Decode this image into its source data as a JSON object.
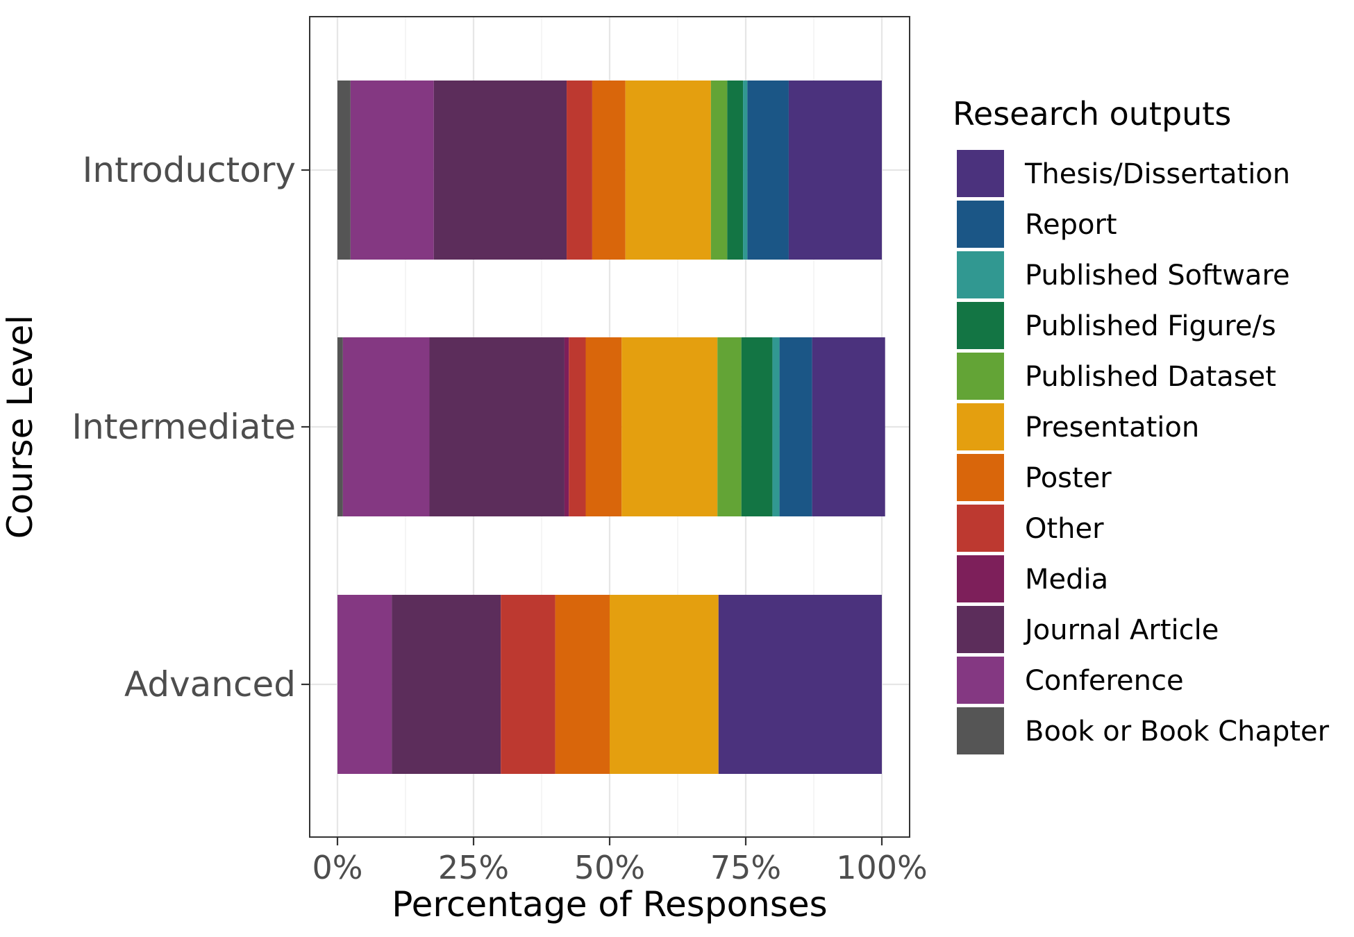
{
  "chart_data": {
    "type": "bar",
    "orientation": "horizontal",
    "stacked": true,
    "xlabel": "Percentage of Responses",
    "ylabel": "Course Level",
    "xlim": [
      0,
      100
    ],
    "x_tick_labels": [
      "0%",
      "25%",
      "50%",
      "75%",
      "100%"
    ],
    "x_ticks": [
      0,
      25,
      50,
      75,
      100
    ],
    "grid": true,
    "legend_title": "Research outputs",
    "legend_position": "right",
    "categories": [
      "Introductory",
      "Intermediate",
      "Advanced"
    ],
    "series": [
      {
        "name": "Book or Book Chapter",
        "color": "#555555",
        "values": [
          2.4,
          1.0,
          0
        ]
      },
      {
        "name": "Conference",
        "color": "#843882",
        "values": [
          15.3,
          15.9,
          10.0
        ]
      },
      {
        "name": "Journal Article",
        "color": "#5c2d5b",
        "values": [
          24.4,
          24.8,
          20.0
        ]
      },
      {
        "name": "Media",
        "color": "#7d1f5a",
        "values": [
          0,
          0.8,
          0
        ]
      },
      {
        "name": "Other",
        "color": "#bd3930",
        "values": [
          4.7,
          3.1,
          10.0
        ]
      },
      {
        "name": "Poster",
        "color": "#d9660b",
        "values": [
          6.1,
          6.6,
          10.0
        ]
      },
      {
        "name": "Presentation",
        "color": "#e49f0f",
        "values": [
          15.7,
          17.6,
          20.0
        ]
      },
      {
        "name": "Published Dataset",
        "color": "#63a436",
        "values": [
          3.0,
          4.4,
          0
        ]
      },
      {
        "name": "Published Figure/s",
        "color": "#137544",
        "values": [
          2.9,
          5.7,
          0
        ]
      },
      {
        "name": "Published Software",
        "color": "#319891",
        "values": [
          0.8,
          1.3,
          0
        ]
      },
      {
        "name": "Report",
        "color": "#1b5686",
        "values": [
          7.6,
          6.0,
          0
        ]
      },
      {
        "name": "Thesis/Dissertation",
        "color": "#4b327d",
        "values": [
          17.1,
          13.4,
          30.0
        ]
      }
    ]
  }
}
